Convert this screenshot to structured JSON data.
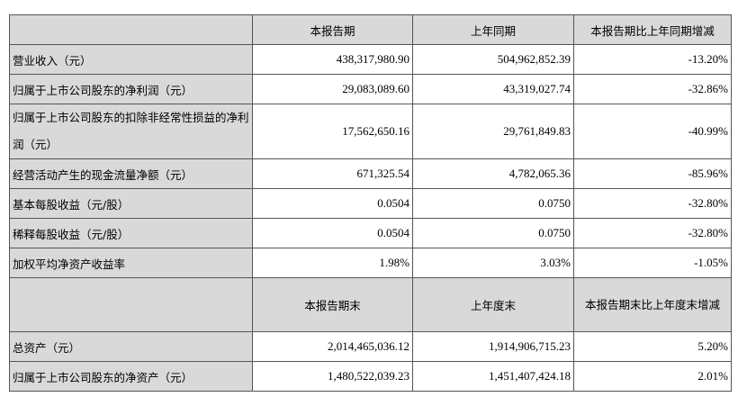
{
  "header1": [
    "",
    "本报告期",
    "上年同期",
    "本报告期比上年同期增减"
  ],
  "rows1": [
    {
      "label": "营业收入（元）",
      "values": [
        "438,317,980.90",
        "504,962,852.39",
        "-13.20%"
      ]
    },
    {
      "label": "归属于上市公司股东的净利润（元）",
      "values": [
        "29,083,089.60",
        "43,319,027.74",
        "-32.86%"
      ]
    },
    {
      "label": "归属于上市公司股东的扣除非经常性损益的净利润（元）",
      "values": [
        "17,562,650.16",
        "29,761,849.83",
        "-40.99%"
      ]
    },
    {
      "label": "经营活动产生的现金流量净额（元）",
      "values": [
        "671,325.54",
        "4,782,065.36",
        "-85.96%"
      ]
    },
    {
      "label": "基本每股收益（元/股）",
      "values": [
        "0.0504",
        "0.0750",
        "-32.80%"
      ]
    },
    {
      "label": "稀释每股收益（元/股）",
      "values": [
        "0.0504",
        "0.0750",
        "-32.80%"
      ]
    },
    {
      "label": "加权平均净资产收益率",
      "values": [
        "1.98%",
        "3.03%",
        "-1.05%"
      ]
    }
  ],
  "header2": [
    "",
    "本报告期末",
    "上年度末",
    "本报告期末比上年度末增减"
  ],
  "rows2": [
    {
      "label": "总资产（元）",
      "values": [
        "2,014,465,036.12",
        "1,914,906,715.23",
        "5.20%"
      ]
    },
    {
      "label": "归属于上市公司股东的净资产（元）",
      "values": [
        "1,480,522,039.23",
        "1,451,407,424.18",
        "2.01%"
      ]
    }
  ]
}
